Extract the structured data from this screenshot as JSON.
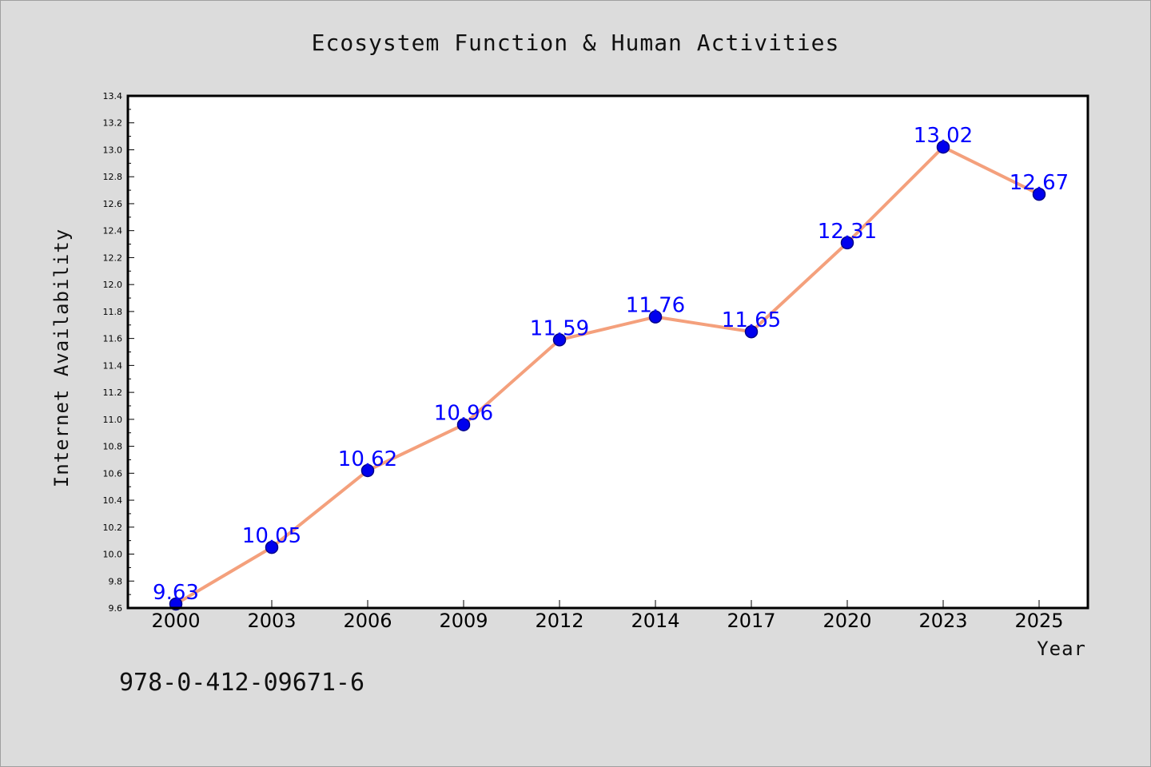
{
  "chart_data": {
    "type": "line",
    "title": "Ecosystem Function & Human Activities",
    "xlabel": "Year",
    "ylabel": "Internet Availability",
    "categories": [
      "2000",
      "2003",
      "2006",
      "2009",
      "2012",
      "2014",
      "2017",
      "2020",
      "2023",
      "2025"
    ],
    "series": [
      {
        "values": [
          9.63,
          10.05,
          10.62,
          10.96,
          11.59,
          11.76,
          11.65,
          12.31,
          13.02,
          12.67
        ]
      }
    ],
    "data_labels": [
      "9.63",
      "10.05",
      "10.62",
      "10.96",
      "11.59",
      "11.76",
      "11.65",
      "12.31",
      "13.02",
      "12.67"
    ],
    "yticks": [
      "9.6",
      "9.8",
      "10.0",
      "10.2",
      "10.4",
      "10.6",
      "10.8",
      "11.0",
      "11.2",
      "11.4",
      "11.6",
      "11.8",
      "12.0",
      "12.2",
      "12.4",
      "12.6",
      "12.8",
      "13.0",
      "13.2",
      "13.4"
    ],
    "ylim": [
      9.6,
      13.4
    ],
    "grid": false,
    "legend": "none",
    "colors": {
      "line": "#f4a07c",
      "marker": "#0000ee",
      "marker_edge": "#00008b",
      "label": "#0000ff",
      "background": "#dcdcdc",
      "plot_background": "#ffffff"
    }
  },
  "annotation": {
    "isbn": "978-0-412-09671-6"
  }
}
